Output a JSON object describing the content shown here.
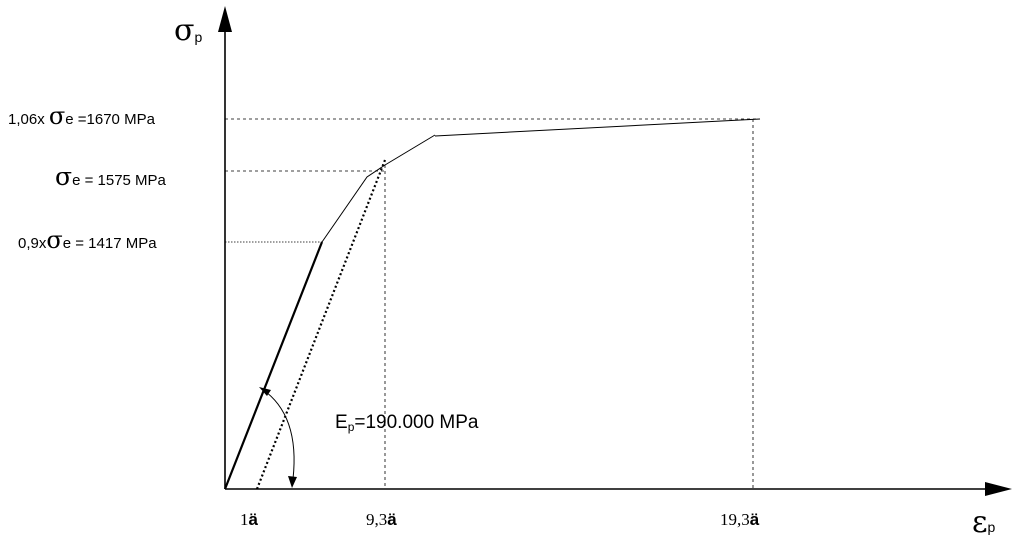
{
  "axes": {
    "y_symbol": "σ",
    "y_subscript": "p",
    "x_symbol": "ε",
    "x_subscript": "p"
  },
  "y_labels": {
    "top": {
      "prefix": "1,06x ",
      "sigma": "σ",
      "suffix": "e =1670 MPa"
    },
    "middle": {
      "sigma": "σ",
      "suffix": "e = 1575 MPa"
    },
    "low": {
      "prefix": "0,9x",
      "sigma": "σ",
      "suffix": "e = 1417 MPa"
    }
  },
  "x_labels": {
    "first": {
      "number": "1",
      "unit": "ä"
    },
    "second": {
      "number": "9,3",
      "unit": "ä"
    },
    "third": {
      "number": "19,3",
      "unit": "ä"
    }
  },
  "modulus": {
    "symbol": "E",
    "subscript": "p",
    "value": "=190.000 MPa"
  }
}
